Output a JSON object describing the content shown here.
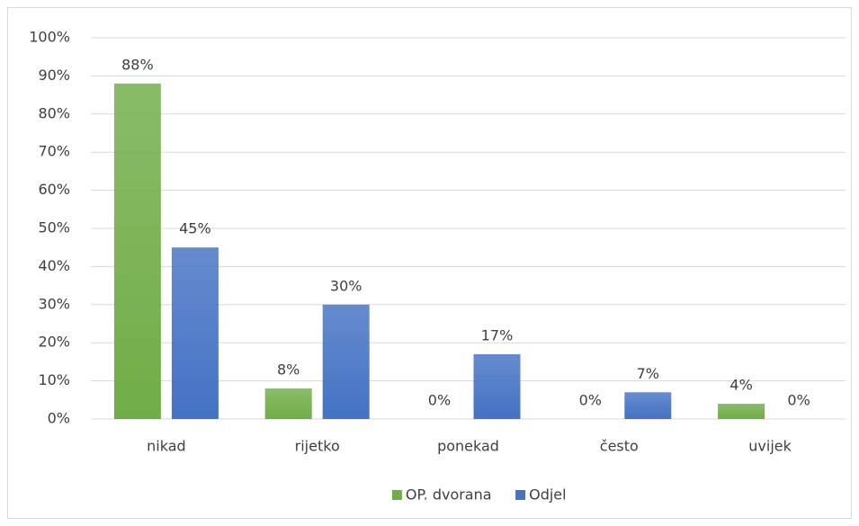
{
  "chart_data": {
    "type": "bar",
    "categories": [
      "nikad",
      "rijetko",
      "ponekad",
      "često",
      "uvijek"
    ],
    "series": [
      {
        "name": "OP. dvorana",
        "color": "#70ad47",
        "values": [
          88,
          8,
          0,
          0,
          4
        ],
        "value_labels": [
          "88%",
          "8%",
          "0%",
          "0%",
          "4%"
        ]
      },
      {
        "name": "Odjel",
        "color": "#4472c4",
        "values": [
          45,
          30,
          17,
          7,
          0
        ],
        "value_labels": [
          "45%",
          "30%",
          "17%",
          "7%",
          "0%"
        ]
      }
    ],
    "ylim": [
      0,
      100
    ],
    "yticks": [
      {
        "value": 0,
        "label": "0%"
      },
      {
        "value": 10,
        "label": "10%"
      },
      {
        "value": 20,
        "label": "20%"
      },
      {
        "value": 30,
        "label": "30%"
      },
      {
        "value": 40,
        "label": "40%"
      },
      {
        "value": 50,
        "label": "50%"
      },
      {
        "value": 60,
        "label": "60%"
      },
      {
        "value": 70,
        "label": "70%"
      },
      {
        "value": 80,
        "label": "80%"
      },
      {
        "value": 90,
        "label": "90%"
      },
      {
        "value": 100,
        "label": "100%"
      }
    ],
    "grid": true,
    "legend": "bottom"
  }
}
